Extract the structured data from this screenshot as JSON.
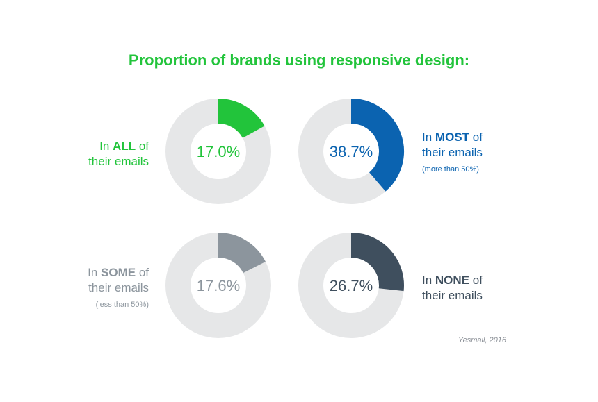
{
  "title": "Proportion of brands using responsive design:",
  "source": "Yesmail, 2016",
  "colors": {
    "title": "#22c43b",
    "track": "#e6e7e8",
    "all": "#22c43b",
    "most": "#0b63b0",
    "some": "#8c959d",
    "none": "#3f4f5e"
  },
  "chart_data": [
    {
      "type": "pie",
      "value": 17.0,
      "value_label": "17.0%",
      "label_prefix": "In ",
      "label_bold": "ALL",
      "label_suffix": " of",
      "label_line2": "their emails",
      "note": "",
      "color": "#22c43b"
    },
    {
      "type": "pie",
      "value": 38.7,
      "value_label": "38.7%",
      "label_prefix": "In ",
      "label_bold": "MOST",
      "label_suffix": " of",
      "label_line2": "their emails",
      "note": "(more than 50%)",
      "color": "#0b63b0"
    },
    {
      "type": "pie",
      "value": 17.6,
      "value_label": "17.6%",
      "label_prefix": "In ",
      "label_bold": "SOME",
      "label_suffix": " of",
      "label_line2": "their emails",
      "note": "(less than 50%)",
      "color": "#8c959d"
    },
    {
      "type": "pie",
      "value": 26.7,
      "value_label": "26.7%",
      "label_prefix": "In ",
      "label_bold": "NONE",
      "label_suffix": " of",
      "label_line2": "their emails",
      "note": "",
      "color": "#3f4f5e"
    }
  ]
}
